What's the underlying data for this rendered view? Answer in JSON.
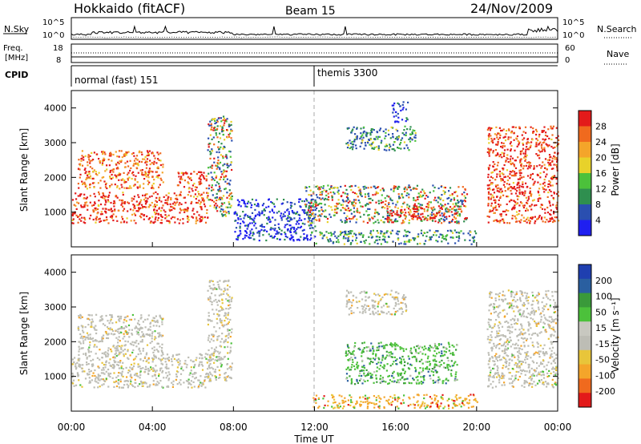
{
  "header": {
    "station": "Hokkaido (fitACF)",
    "beam": "Beam 15",
    "date": "24/Nov/2009"
  },
  "strip": {
    "nsky_label": "N.Sky",
    "nsky_ticks": [
      "10^5",
      "10^0"
    ],
    "nsearch_label": "N.Search",
    "nsearch_ticks": [
      "10^5",
      "10^0"
    ],
    "freq_label_1": "Freq.",
    "freq_label_2": "[MHz]",
    "freq_ticks": [
      "18",
      "8"
    ],
    "nave_label": "Nave",
    "nave_ticks": [
      "60",
      "0"
    ],
    "cpid_label": "CPID",
    "cpid_1": "normal (fast) 151",
    "cpid_2": "themis 3300"
  },
  "colors": {
    "power": [
      "#1f1ff0",
      "#2a4fb0",
      "#2f8f4f",
      "#4cc13b",
      "#e8d22a",
      "#f4a52a",
      "#f06a1e",
      "#e31a1a"
    ],
    "velocity": [
      "#e31a1a",
      "#f06a1e",
      "#f4a52a",
      "#e8c53a",
      "#bdbdb5",
      "#c8c8c0",
      "#4cc13b",
      "#3a9a3a",
      "#2a5fa0",
      "#1f3fb0"
    ]
  },
  "chart_data": [
    {
      "type": "heatmap",
      "panel": "power",
      "ylabel": "Slant Range [km]",
      "yticks": [
        "1000",
        "2000",
        "3000",
        "4000"
      ],
      "ylim": [
        0,
        4500
      ],
      "xlim": [
        0,
        24
      ],
      "colorbar_label": "Power [dB]",
      "colorbar_ticks": [
        "4",
        "8",
        "12",
        "16",
        "20",
        "24",
        "28"
      ],
      "regions": [
        {
          "t0": 0.0,
          "t1": 5.2,
          "r0": 700,
          "r1": 1600,
          "level": "high"
        },
        {
          "t0": 0.3,
          "t1": 4.5,
          "r0": 1700,
          "r1": 2800,
          "level": "mid"
        },
        {
          "t0": 5.2,
          "t1": 6.7,
          "r0": 700,
          "r1": 2200,
          "level": "high"
        },
        {
          "t0": 6.7,
          "t1": 7.9,
          "r0": 900,
          "r1": 3800,
          "level": "mixed"
        },
        {
          "t0": 8.0,
          "t1": 12.0,
          "r0": 200,
          "r1": 1400,
          "level": "low"
        },
        {
          "t0": 11.5,
          "t1": 19.5,
          "r0": 700,
          "r1": 1800,
          "level": "mixed"
        },
        {
          "t0": 13.5,
          "t1": 17.0,
          "r0": 2800,
          "r1": 3500,
          "level": "lowmid"
        },
        {
          "t0": 15.8,
          "t1": 16.6,
          "r0": 3600,
          "r1": 4200,
          "level": "low"
        },
        {
          "t0": 15.5,
          "t1": 19.0,
          "r0": 800,
          "r1": 1200,
          "level": "high"
        },
        {
          "t0": 11.8,
          "t1": 20.0,
          "r0": 100,
          "r1": 500,
          "level": "lowmid"
        },
        {
          "t0": 20.5,
          "t1": 24.0,
          "r0": 700,
          "r1": 3500,
          "level": "high"
        }
      ]
    },
    {
      "type": "heatmap",
      "panel": "velocity",
      "xlabel": "Time UT",
      "ylabel": "Slant Range [km]",
      "yticks": [
        "1000",
        "2000",
        "3000",
        "4000"
      ],
      "xticks": [
        "00:00",
        "04:00",
        "08:00",
        "12:00",
        "16:00",
        "20:00",
        "00:00"
      ],
      "ylim": [
        0,
        4500
      ],
      "xlim": [
        0,
        24
      ],
      "colorbar_label": "Velocity [m s⁻¹]",
      "colorbar_ticks": [
        "200",
        "100",
        "50",
        "15",
        "-15",
        "-50",
        "-100",
        "-200"
      ],
      "regions": [
        {
          "t0": 0.0,
          "t1": 7.0,
          "r0": 700,
          "r1": 1700,
          "level": "grey"
        },
        {
          "t0": 0.3,
          "t1": 4.5,
          "r0": 1700,
          "r1": 2800,
          "level": "grey"
        },
        {
          "t0": 6.7,
          "t1": 7.9,
          "r0": 900,
          "r1": 3800,
          "level": "grey"
        },
        {
          "t0": 13.5,
          "t1": 16.5,
          "r0": 2800,
          "r1": 3500,
          "level": "grey"
        },
        {
          "t0": 13.5,
          "t1": 19.0,
          "r0": 800,
          "r1": 2000,
          "level": "green"
        },
        {
          "t0": 11.8,
          "t1": 20.0,
          "r0": 100,
          "r1": 500,
          "level": "orangegreen"
        },
        {
          "t0": 20.5,
          "t1": 24.0,
          "r0": 700,
          "r1": 3500,
          "level": "grey"
        }
      ]
    }
  ]
}
